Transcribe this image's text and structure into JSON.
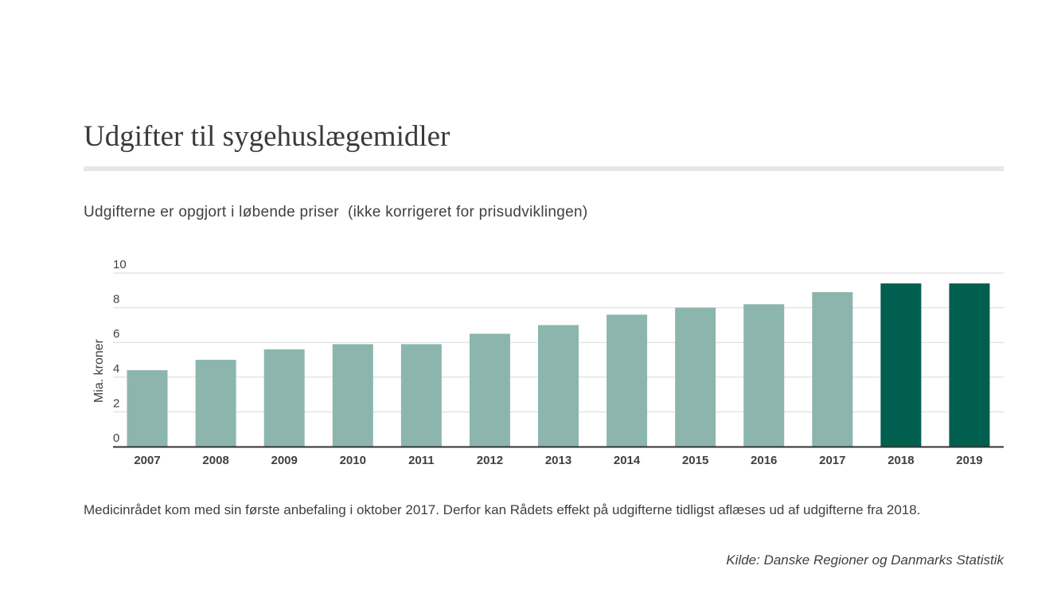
{
  "title": "Udgifter til sygehuslægemidler",
  "subtitle": "Udgifterne er opgjort i løbende priser  (ikke korrigeret for prisudviklingen)",
  "note": "Medicinrådet kom med sin første anbefaling i oktober 2017. Derfor kan Rådets effekt på udgifterne tidligst aflæses ud af udgifterne fra 2018.",
  "source": "Kilde: Danske Regioner og Danmarks Statistik",
  "colors": {
    "bar_default": "#8cb5ae",
    "bar_highlight": "#005f4f",
    "grid": "#d9d9d9",
    "axis": "#333333",
    "text": "#404040"
  },
  "chart_data": {
    "type": "bar",
    "ylabel": "Mia. kroner",
    "xlabel": "",
    "categories": [
      "2007",
      "2008",
      "2009",
      "2010",
      "2011",
      "2012",
      "2013",
      "2014",
      "2015",
      "2016",
      "2017",
      "2018",
      "2019"
    ],
    "values": [
      4.4,
      5.0,
      5.6,
      5.9,
      5.9,
      6.5,
      7.0,
      7.6,
      8.0,
      8.2,
      8.9,
      9.4,
      9.4
    ],
    "highlighted": [
      "2018",
      "2019"
    ],
    "ylim": [
      0,
      10
    ],
    "yticks": [
      0,
      2,
      4,
      6,
      8,
      10
    ],
    "grid": true
  }
}
